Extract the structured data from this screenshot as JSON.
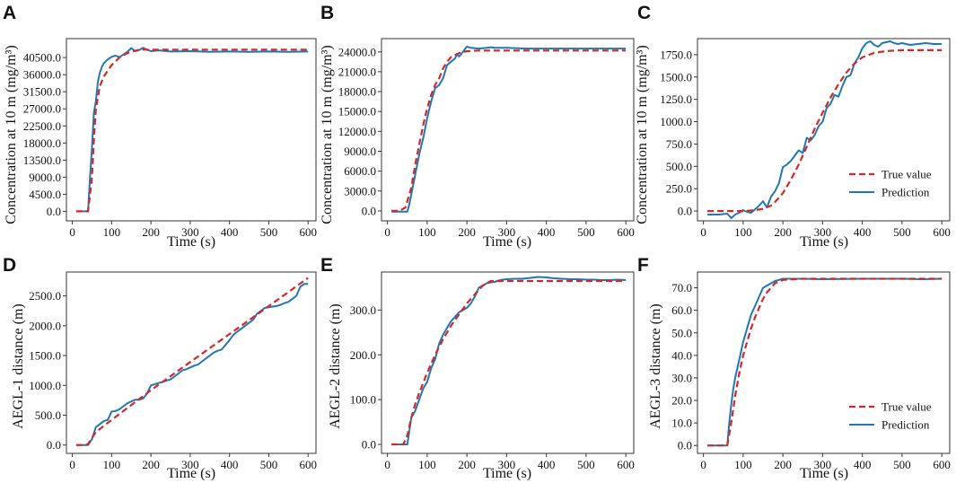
{
  "figure": {
    "colors": {
      "true_value": "#d62728",
      "prediction": "#1f77b4"
    },
    "legend": {
      "true_label": "True value",
      "pred_label": "Prediction"
    }
  },
  "chart_data": [
    {
      "panel": "A",
      "type": "line",
      "xlabel": "Time (s)",
      "ylabel": "Concentration at 10 m (mg/m³)",
      "xlim": [
        -15,
        620
      ],
      "ylim": [
        -2500,
        45500
      ],
      "xticks": [
        0,
        100,
        200,
        300,
        400,
        500,
        600
      ],
      "yticks": [
        0,
        4500,
        9000,
        13500,
        18000,
        22500,
        27000,
        31500,
        36000,
        40500
      ],
      "ytick_labels": [
        "0.0",
        "4500.0",
        "9000.0",
        "13500.0",
        "18000.0",
        "22500.0",
        "27000.0",
        "31500.0",
        "36000.0",
        "40500.0"
      ],
      "legend": false,
      "series": [
        {
          "name": "True value",
          "x": [
            10,
            30,
            40,
            50,
            55,
            60,
            70,
            80,
            90,
            100,
            120,
            140,
            160,
            170,
            180,
            200,
            250,
            300,
            400,
            500,
            600
          ],
          "y": [
            0,
            0,
            0,
            9000,
            19000,
            27000,
            33000,
            35500,
            37000,
            38500,
            40500,
            41700,
            42300,
            42500,
            42600,
            42600,
            42600,
            42600,
            42600,
            42600,
            42600
          ]
        },
        {
          "name": "Prediction",
          "x": [
            10,
            30,
            40,
            45,
            50,
            55,
            60,
            65,
            70,
            75,
            80,
            90,
            100,
            110,
            120,
            130,
            140,
            150,
            160,
            170,
            180,
            190,
            200,
            220,
            250,
            300,
            350,
            400,
            450,
            500,
            550,
            600
          ],
          "y": [
            0,
            0,
            0,
            9000,
            17000,
            26000,
            29000,
            34000,
            36500,
            38000,
            39000,
            40000,
            40700,
            41000,
            40600,
            41300,
            42000,
            43000,
            42200,
            42500,
            43100,
            42600,
            42200,
            42400,
            42100,
            42200,
            42000,
            42100,
            42000,
            42100,
            42000,
            42100
          ]
        }
      ]
    },
    {
      "panel": "B",
      "type": "line",
      "xlabel": "Time (s)",
      "ylabel": "Concentration at 10 m (mg/m³)",
      "xlim": [
        -15,
        620
      ],
      "ylim": [
        -1500,
        26000
      ],
      "xticks": [
        0,
        100,
        200,
        300,
        400,
        500,
        600
      ],
      "yticks": [
        0,
        3000,
        6000,
        9000,
        12000,
        15000,
        18000,
        21000,
        24000
      ],
      "ytick_labels": [
        "0.0",
        "3000.0",
        "6000.0",
        "9000.0",
        "12000.0",
        "15000.0",
        "18000.0",
        "21000.0",
        "24000.0"
      ],
      "legend": false,
      "series": [
        {
          "name": "True value",
          "x": [
            10,
            30,
            45,
            60,
            70,
            80,
            90,
            100,
            110,
            120,
            130,
            140,
            150,
            160,
            180,
            200,
            230,
            300,
            400,
            500,
            600
          ],
          "y": [
            0,
            0,
            500,
            3500,
            7000,
            10000,
            13000,
            15500,
            17500,
            19000,
            20000,
            21500,
            22500,
            23200,
            23800,
            24100,
            24200,
            24200,
            24200,
            24200,
            24200
          ]
        },
        {
          "name": "Prediction",
          "x": [
            10,
            30,
            50,
            55,
            60,
            70,
            80,
            90,
            100,
            110,
            120,
            130,
            140,
            150,
            160,
            170,
            175,
            180,
            185,
            190,
            200,
            210,
            230,
            250,
            260,
            270,
            300,
            350,
            400,
            450,
            500,
            550,
            600
          ],
          "y": [
            -100,
            -100,
            -100,
            1000,
            2500,
            5500,
            8500,
            11000,
            14000,
            16500,
            18500,
            19000,
            20000,
            22000,
            22500,
            23000,
            23700,
            23300,
            23600,
            24000,
            24800,
            24600,
            24500,
            24600,
            24700,
            24600,
            24600,
            24500,
            24500,
            24500,
            24500,
            24500,
            24500
          ]
        }
      ]
    },
    {
      "panel": "C",
      "type": "line",
      "xlabel": "Time (s)",
      "ylabel": "Concentration at 10 m (mg/m³)",
      "xlim": [
        -15,
        620
      ],
      "ylim": [
        -110,
        1930
      ],
      "xticks": [
        0,
        100,
        200,
        300,
        400,
        500,
        600
      ],
      "yticks": [
        0,
        250,
        500,
        750,
        1000,
        1250,
        1500,
        1750
      ],
      "ytick_labels": [
        "0.0",
        "250.0",
        "500.0",
        "750.0",
        "1000.0",
        "1250.0",
        "1500.0",
        "1750.0"
      ],
      "legend": true,
      "legend_loc": "lower-right",
      "series": [
        {
          "name": "True value",
          "x": [
            10,
            50,
            100,
            130,
            150,
            170,
            180,
            200,
            220,
            240,
            260,
            280,
            300,
            320,
            340,
            360,
            380,
            400,
            430,
            460,
            500,
            600
          ],
          "y": [
            0,
            0,
            0,
            10,
            25,
            60,
            100,
            200,
            350,
            520,
            720,
            920,
            1100,
            1270,
            1420,
            1550,
            1650,
            1720,
            1770,
            1790,
            1800,
            1800
          ]
        },
        {
          "name": "Prediction",
          "x": [
            10,
            40,
            60,
            70,
            80,
            90,
            100,
            110,
            120,
            130,
            140,
            150,
            160,
            170,
            180,
            190,
            200,
            210,
            220,
            230,
            240,
            250,
            260,
            270,
            280,
            290,
            300,
            310,
            320,
            330,
            340,
            350,
            360,
            370,
            380,
            390,
            400,
            410,
            420,
            430,
            440,
            450,
            460,
            470,
            480,
            490,
            500,
            520,
            540,
            560,
            580,
            600
          ],
          "y": [
            -40,
            -40,
            -30,
            -80,
            -40,
            -20,
            10,
            -10,
            -20,
            20,
            60,
            110,
            40,
            160,
            220,
            310,
            490,
            520,
            560,
            620,
            680,
            650,
            820,
            790,
            850,
            950,
            1000,
            1150,
            1200,
            1300,
            1280,
            1400,
            1500,
            1520,
            1650,
            1720,
            1820,
            1880,
            1900,
            1860,
            1840,
            1880,
            1890,
            1900,
            1880,
            1870,
            1880,
            1860,
            1870,
            1880,
            1870,
            1870
          ]
        }
      ]
    },
    {
      "panel": "D",
      "type": "line",
      "xlabel": "Time (s)",
      "ylabel": "AEGL-1 distance (m)",
      "xlim": [
        -15,
        620
      ],
      "ylim": [
        -140,
        2900
      ],
      "xticks": [
        0,
        100,
        200,
        300,
        400,
        500,
        600
      ],
      "yticks": [
        0,
        500,
        1000,
        1500,
        2000,
        2500
      ],
      "ytick_labels": [
        "0.0",
        "500.0",
        "1000.0",
        "1500.0",
        "2000.0",
        "2500.0"
      ],
      "legend": false,
      "series": [
        {
          "name": "True value",
          "x": [
            10,
            30,
            40,
            50,
            60,
            100,
            200,
            300,
            400,
            500,
            600
          ],
          "y": [
            0,
            0,
            15,
            120,
            220,
            420,
            920,
            1390,
            1860,
            2330,
            2800
          ]
        },
        {
          "name": "Prediction",
          "x": [
            10,
            30,
            40,
            50,
            60,
            70,
            80,
            90,
            100,
            110,
            120,
            130,
            140,
            150,
            160,
            170,
            180,
            190,
            200,
            210,
            220,
            230,
            240,
            250,
            260,
            270,
            280,
            290,
            300,
            310,
            320,
            330,
            340,
            350,
            360,
            370,
            380,
            390,
            400,
            410,
            420,
            430,
            440,
            450,
            460,
            470,
            480,
            490,
            500,
            510,
            520,
            530,
            540,
            550,
            560,
            570,
            580,
            590,
            600
          ],
          "y": [
            0,
            0,
            0,
            100,
            300,
            350,
            400,
            420,
            560,
            570,
            600,
            650,
            700,
            730,
            760,
            760,
            780,
            860,
            1000,
            1020,
            1040,
            1060,
            1080,
            1100,
            1150,
            1200,
            1250,
            1270,
            1300,
            1330,
            1350,
            1400,
            1450,
            1500,
            1550,
            1580,
            1600,
            1680,
            1760,
            1850,
            1900,
            1950,
            2000,
            2050,
            2100,
            2200,
            2250,
            2300,
            2310,
            2320,
            2330,
            2350,
            2380,
            2400,
            2450,
            2500,
            2650,
            2700,
            2700
          ]
        }
      ]
    },
    {
      "panel": "E",
      "type": "line",
      "xlabel": "Time (s)",
      "ylabel": "AEGL-2 distance (m)",
      "xlim": [
        -15,
        620
      ],
      "ylim": [
        -20,
        385
      ],
      "xticks": [
        0,
        100,
        200,
        300,
        400,
        500,
        600
      ],
      "yticks": [
        0,
        100,
        200,
        300
      ],
      "ytick_labels": [
        "0.0",
        "100.0",
        "200.0",
        "300.0"
      ],
      "legend": false,
      "series": [
        {
          "name": "True value",
          "x": [
            10,
            40,
            50,
            60,
            70,
            80,
            100,
            120,
            140,
            160,
            180,
            200,
            220,
            240,
            260,
            300,
            400,
            500,
            600
          ],
          "y": [
            0,
            0,
            20,
            60,
            90,
            115,
            160,
            200,
            235,
            265,
            290,
            315,
            335,
            355,
            365,
            365,
            365,
            365,
            365
          ]
        },
        {
          "name": "Prediction",
          "x": [
            10,
            40,
            50,
            60,
            70,
            80,
            90,
            100,
            110,
            120,
            130,
            140,
            150,
            160,
            170,
            180,
            190,
            200,
            210,
            220,
            230,
            240,
            250,
            260,
            270,
            280,
            290,
            300,
            320,
            340,
            360,
            380,
            400,
            420,
            440,
            460,
            480,
            500,
            520,
            540,
            560,
            580,
            600
          ],
          "y": [
            0,
            0,
            0,
            60,
            75,
            100,
            125,
            140,
            170,
            190,
            225,
            245,
            260,
            275,
            285,
            295,
            300,
            305,
            315,
            330,
            350,
            355,
            360,
            362,
            363,
            366,
            368,
            369,
            370,
            370,
            372,
            374,
            373,
            371,
            370,
            369,
            369,
            368,
            368,
            367,
            367,
            368,
            367
          ]
        }
      ]
    },
    {
      "panel": "F",
      "type": "line",
      "xlabel": "Time (s)",
      "ylabel": "AEGL-3 distance (m)",
      "xlim": [
        -15,
        620
      ],
      "ylim": [
        -3.5,
        77
      ],
      "xticks": [
        0,
        100,
        200,
        300,
        400,
        500,
        600
      ],
      "yticks": [
        0,
        10,
        20,
        30,
        40,
        50,
        60,
        70
      ],
      "ytick_labels": [
        "0.0",
        "10.0",
        "20.0",
        "30.0",
        "40.0",
        "50.0",
        "60.0",
        "70.0"
      ],
      "legend": true,
      "legend_loc": "lower-right",
      "series": [
        {
          "name": "True value",
          "x": [
            10,
            60,
            70,
            80,
            90,
            100,
            110,
            120,
            130,
            140,
            150,
            160,
            170,
            180,
            200,
            250,
            300,
            400,
            500,
            600
          ],
          "y": [
            0,
            0,
            10,
            22,
            32,
            40,
            46,
            52,
            57,
            61,
            65,
            68,
            70,
            72,
            73.5,
            74,
            74,
            74,
            74,
            74
          ]
        },
        {
          "name": "Prediction",
          "x": [
            10,
            60,
            65,
            70,
            75,
            80,
            90,
            100,
            110,
            120,
            130,
            140,
            150,
            160,
            170,
            180,
            190,
            200,
            250,
            300,
            400,
            450,
            500,
            550,
            600
          ],
          "y": [
            0,
            0,
            10,
            18,
            25,
            30,
            38,
            46,
            52,
            58,
            62,
            66,
            70,
            71,
            72,
            73,
            73.5,
            74,
            74,
            73.8,
            74,
            74,
            74,
            73.8,
            74
          ]
        }
      ]
    }
  ]
}
